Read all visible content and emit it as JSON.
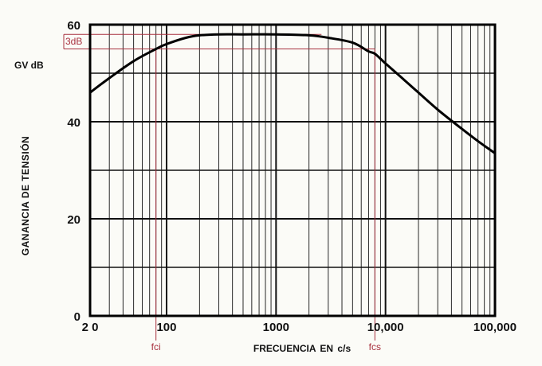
{
  "colors": {
    "background": "#fbfbf7",
    "grid": "#111111",
    "curve": "#000000",
    "annotation": "#a8303e"
  },
  "chart_data": {
    "type": "line",
    "title": "",
    "y_unit_label": "GV dB",
    "ylabel": "GANANCIA  DE  TENSIÓN",
    "xlabel": "FRECUENCIA  EN  c/s",
    "x_scale": "log",
    "xlim": [
      20,
      100000
    ],
    "ylim": [
      0,
      60
    ],
    "x_tick_labels": [
      "2 0",
      "100",
      "1000",
      "10,000",
      "100,000"
    ],
    "y_tick_labels": [
      "0",
      "20",
      "40",
      "60"
    ],
    "grid": true,
    "series": [
      {
        "x": [
          20,
          30,
          50,
          80,
          100,
          150,
          200,
          300,
          500,
          1000,
          2000,
          3000,
          5000,
          7000,
          8000,
          10000,
          15000,
          20000,
          30000,
          50000,
          70000,
          100000
        ],
        "y": [
          46,
          49,
          52.5,
          55,
          56,
          57.3,
          57.8,
          58,
          58,
          58,
          57.8,
          57.3,
          56.3,
          54.5,
          54,
          52,
          48.5,
          46,
          42.5,
          38.5,
          36,
          33.5
        ]
      }
    ],
    "annotations": {
      "db_label": "3dB",
      "fci_label": "fci",
      "fcs_label": "fcs",
      "fci_x": 80,
      "fcs_x": 8000,
      "upper_level": 58,
      "lower_level": 55
    }
  }
}
